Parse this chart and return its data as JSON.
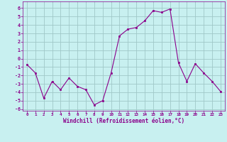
{
  "x": [
    0,
    1,
    2,
    3,
    4,
    5,
    6,
    7,
    8,
    9,
    10,
    11,
    12,
    13,
    14,
    15,
    16,
    17,
    18,
    19,
    20,
    21,
    22,
    23
  ],
  "y": [
    -0.7,
    -1.7,
    -4.7,
    -2.7,
    -3.7,
    -2.3,
    -3.3,
    -3.7,
    -5.5,
    -5.0,
    -1.7,
    2.7,
    3.5,
    3.7,
    4.5,
    5.7,
    5.5,
    5.9,
    -0.5,
    -2.7,
    -0.6,
    -1.7,
    -2.7,
    -3.9
  ],
  "line_color": "#8B008B",
  "marker": "s",
  "marker_size": 2,
  "background_color": "#c8f0f0",
  "grid_color": "#a0c8c8",
  "xlabel": "Windchill (Refroidissement éolien,°C)",
  "xlabel_color": "#8B008B",
  "tick_color": "#8B008B",
  "ylim": [
    -6.2,
    6.8
  ],
  "xlim": [
    -0.5,
    23.5
  ],
  "yticks": [
    -6,
    -5,
    -4,
    -3,
    -2,
    -1,
    0,
    1,
    2,
    3,
    4,
    5,
    6
  ],
  "xticks": [
    0,
    1,
    2,
    3,
    4,
    5,
    6,
    7,
    8,
    9,
    10,
    11,
    12,
    13,
    14,
    15,
    16,
    17,
    18,
    19,
    20,
    21,
    22,
    23
  ]
}
